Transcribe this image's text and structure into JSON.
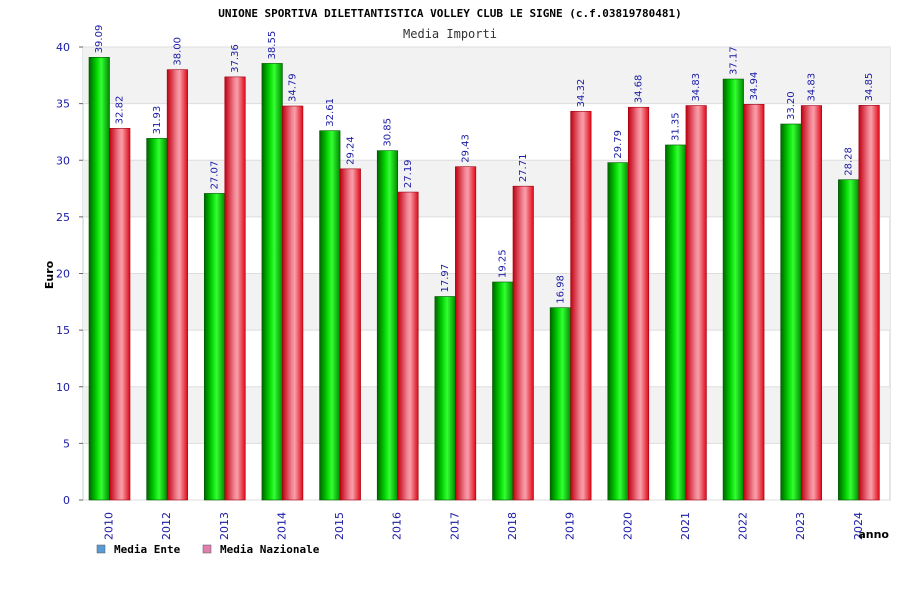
{
  "chart_data": {
    "type": "bar",
    "title": "UNIONE SPORTIVA DILETTANTISTICA VOLLEY CLUB LE SIGNE (c.f.03819780481)",
    "subtitle": "Media Importi",
    "xlabel": "anno",
    "ylabel": "Euro",
    "ylim": [
      0,
      40
    ],
    "yticks": [
      0,
      5,
      10,
      15,
      20,
      25,
      30,
      35,
      40
    ],
    "grid": true,
    "legend_position": "bottom-left",
    "categories": [
      "2010",
      "2012",
      "2013",
      "2014",
      "2015",
      "2016",
      "2017",
      "2018",
      "2019",
      "2020",
      "2021",
      "2022",
      "2023",
      "2024"
    ],
    "series": [
      {
        "name": "Media Ente",
        "color": "#00b000",
        "legend_color": "#5b9bd5",
        "values": [
          39.09,
          31.93,
          27.07,
          38.55,
          32.61,
          30.85,
          17.97,
          19.25,
          16.98,
          29.79,
          31.35,
          37.17,
          33.2,
          28.28
        ],
        "labels": [
          "39.09",
          "31.93",
          "27.07",
          "38.55",
          "32.61",
          "30.85",
          "17.97",
          "19.25",
          "16.98",
          "29.79",
          "31.35",
          "37.17",
          "33.20",
          "28.28"
        ]
      },
      {
        "name": "Media Nazionale",
        "color": "#e8101c",
        "legend_color": "#e07fb0",
        "values": [
          32.82,
          38.0,
          37.36,
          34.79,
          29.24,
          27.19,
          29.43,
          27.71,
          34.32,
          34.68,
          34.83,
          34.94,
          34.83,
          34.85
        ],
        "labels": [
          "32.82",
          "38.00",
          "37.36",
          "34.79",
          "29.24",
          "27.19",
          "29.43",
          "27.71",
          "34.32",
          "34.68",
          "34.83",
          "34.94",
          "34.83",
          "34.85"
        ]
      }
    ]
  }
}
